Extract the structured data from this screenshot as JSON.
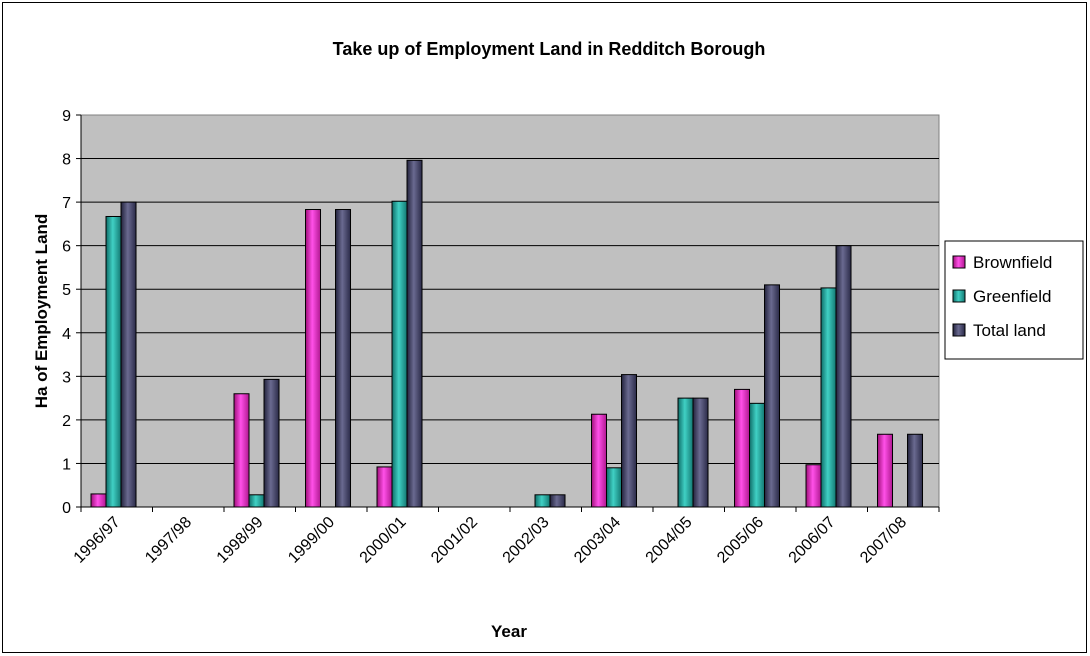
{
  "chart_data": {
    "type": "bar",
    "title": "Take up of Employment Land in Redditch Borough",
    "xlabel": "Year",
    "ylabel": "Ha of Employment Land",
    "ylim": [
      0,
      9
    ],
    "yticks": [
      "0",
      "1",
      "2",
      "3",
      "4",
      "5",
      "6",
      "7",
      "8",
      "9"
    ],
    "grid": true,
    "legend_position": "right",
    "plot_background": "#c0c0c0",
    "categories": [
      "1996/97",
      "1997/98",
      "1998/99",
      "1999/00",
      "2000/01",
      "2001/02",
      "2002/03",
      "2003/04",
      "2004/05",
      "2005/06",
      "2006/07",
      "2007/08"
    ],
    "series": [
      {
        "name": "Brownfield",
        "color": "#e020c0",
        "values": [
          0.3,
          0,
          2.6,
          6.83,
          0.92,
          0,
          0,
          2.13,
          0,
          2.7,
          0.97,
          1.67
        ]
      },
      {
        "name": "Greenfield",
        "color": "#20a8a0",
        "values": [
          6.67,
          0,
          0.28,
          0,
          7.02,
          0,
          0.28,
          0.9,
          2.5,
          2.38,
          5.03,
          0
        ]
      },
      {
        "name": "Total land",
        "color": "#3a3a5a",
        "values": [
          7.0,
          0,
          2.93,
          6.83,
          7.96,
          0,
          0.28,
          3.04,
          2.5,
          5.1,
          6.0,
          1.67
        ]
      }
    ]
  }
}
